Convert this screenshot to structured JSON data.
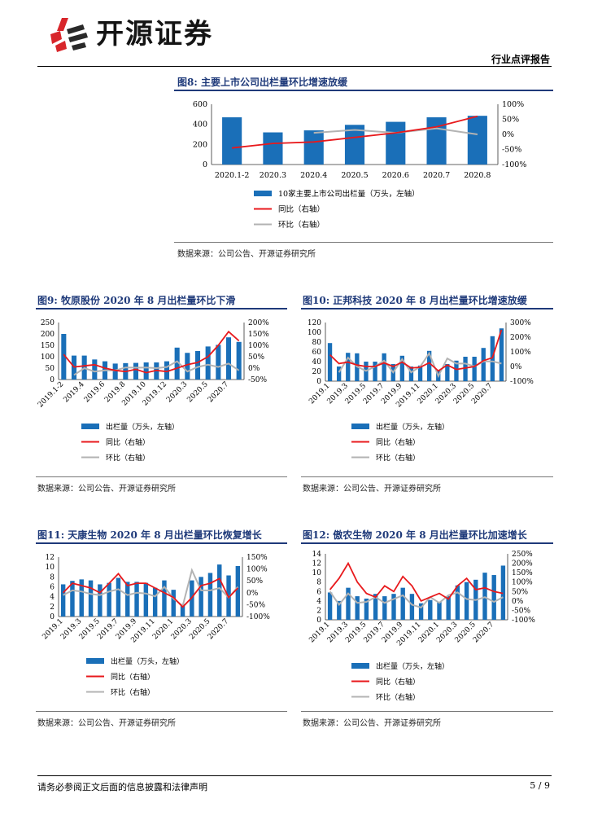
{
  "header": {
    "logo_text": "开源证券",
    "report_type": "行业点评报告"
  },
  "colors": {
    "bar": "#1a6fb8",
    "yoy": "#e8191c",
    "mom": "#b3b3b3",
    "title": "#1f3a7a"
  },
  "figures": [
    {
      "title": "图8:  主要上市公司出栏量环比增速放缓",
      "source": "数据来源：公司公告、开源证券研究所",
      "chart_data": {
        "type": "bar",
        "categories": [
          "2020.1-2",
          "2020.3",
          "2020.4",
          "2020.5",
          "2020.6",
          "2020.7",
          "2020.8"
        ],
        "values": [
          470,
          320,
          340,
          395,
          425,
          470,
          485
        ],
        "yoy": [
          -45,
          -30,
          -25,
          -10,
          5,
          25,
          60
        ],
        "mom": [
          null,
          null,
          5,
          15,
          5,
          20,
          0
        ],
        "ylim": [
          0,
          600
        ],
        "y2lim": [
          -100,
          100
        ],
        "yticks": [
          "600",
          "400",
          "200",
          "0"
        ],
        "y2ticks": [
          "100%",
          "50%",
          "0%",
          "-50%",
          "-100%"
        ],
        "legend": [
          "10家主要上市公司出栏量（万头，左轴）",
          "同比（右轴）",
          "环比（右轴）"
        ],
        "xlabel_rotated": false
      }
    },
    {
      "title": "图9:  牧原股份 2020 年 8 月出栏量环比下滑",
      "source": "数据来源：公司公告、开源证券研究所",
      "chart_data": {
        "type": "bar",
        "categories": [
          "2019.1-2",
          "2019.3",
          "2019.4",
          "2019.5",
          "2019.6",
          "2019.7",
          "2019.8",
          "2019.9",
          "2019.10",
          "2019.11",
          "2019.12",
          "2020.1-2",
          "2020.3",
          "2020.4",
          "2020.5",
          "2020.6",
          "2020.7",
          "2020.8"
        ],
        "xticks": [
          "2019.1-2",
          "2019.4",
          "2019.6",
          "2019.8",
          "2019.10",
          "2019.12",
          "2020.3",
          "2020.5",
          "2020.7"
        ],
        "values": [
          200,
          105,
          105,
          88,
          80,
          70,
          72,
          73,
          75,
          75,
          80,
          140,
          117,
          125,
          145,
          152,
          185,
          165
        ],
        "yoy": [
          60,
          5,
          10,
          15,
          0,
          -10,
          -15,
          -5,
          -20,
          -10,
          -15,
          0,
          15,
          25,
          50,
          100,
          160,
          120
        ],
        "mom": [
          null,
          -30,
          0,
          -15,
          -10,
          -10,
          3,
          2,
          3,
          0,
          5,
          30,
          -15,
          5,
          15,
          5,
          20,
          -10
        ],
        "ylim": [
          0,
          250
        ],
        "y2lim": [
          -50,
          200
        ],
        "yticks": [
          "250",
          "200",
          "150",
          "100",
          "50",
          "0"
        ],
        "y2ticks": [
          "200%",
          "150%",
          "100%",
          "50%",
          "0%",
          "-50%"
        ],
        "legend": [
          "出栏量（万头，左轴）",
          "同比（右轴）",
          "环比（右轴）"
        ],
        "xlabel_rotated": true
      }
    },
    {
      "title": "图10:  正邦科技 2020 年 8 月出栏量环比增速放缓",
      "source": "数据来源：公司公告、开源证券研究所",
      "chart_data": {
        "type": "bar",
        "categories": [
          "2019.1",
          "2019.2",
          "2019.3",
          "2019.4",
          "2019.5",
          "2019.6",
          "2019.7",
          "2019.8",
          "2019.9",
          "2019.10",
          "2019.11",
          "2019.12",
          "2020.1",
          "2020.2",
          "2020.3",
          "2020.4",
          "2020.5",
          "2020.6",
          "2020.7",
          "2020.8"
        ],
        "xticks": [
          "2019.1",
          "2019.3",
          "2019.5",
          "2019.7",
          "2019.9",
          "2019.11",
          "2020.1",
          "2020.3",
          "2020.5",
          "2020.7"
        ],
        "values": [
          78,
          30,
          58,
          57,
          40,
          40,
          57,
          35,
          52,
          30,
          32,
          62,
          22,
          35,
          42,
          50,
          50,
          68,
          92,
          108
        ],
        "yoy": [
          80,
          20,
          30,
          10,
          0,
          0,
          25,
          0,
          30,
          -10,
          -5,
          25,
          -30,
          10,
          -20,
          -10,
          0,
          40,
          60,
          250
        ],
        "mom": [
          null,
          -40,
          60,
          0,
          -30,
          0,
          40,
          -40,
          50,
          -40,
          0,
          90,
          -65,
          55,
          20,
          20,
          0,
          35,
          35,
          20
        ],
        "ylim": [
          0,
          120
        ],
        "y2lim": [
          -100,
          300
        ],
        "yticks": [
          "120",
          "100",
          "80",
          "60",
          "40",
          "20",
          "0"
        ],
        "y2ticks": [
          "300%",
          "200%",
          "100%",
          "0%",
          "-100%"
        ],
        "legend": [
          "出栏量（万头，左轴）",
          "同比（右轴）",
          "环比（右轴）"
        ],
        "xlabel_rotated": true
      }
    },
    {
      "title": "图11:  天康生物 2020 年 8 月出栏量环比恢复增长",
      "source": "数据来源：公司公告、开源证券研究所",
      "chart_data": {
        "type": "bar",
        "categories": [
          "2019.1",
          "2019.2",
          "2019.3",
          "2019.4",
          "2019.5",
          "2019.6",
          "2019.7",
          "2019.8",
          "2019.9",
          "2019.10",
          "2019.11",
          "2019.12",
          "2020.1",
          "2020.2",
          "2020.3",
          "2020.4",
          "2020.5",
          "2020.6",
          "2020.7",
          "2020.8"
        ],
        "xticks": [
          "2019.1",
          "2019.3",
          "2019.5",
          "2019.7",
          "2019.9",
          "2019.11",
          "2020.1",
          "2020.3",
          "2020.5",
          "2020.7"
        ],
        "values": [
          6.5,
          7.2,
          7.5,
          7.3,
          6.5,
          6.8,
          7.8,
          7.0,
          7.0,
          6.8,
          5.8,
          7.3,
          5.4,
          2.5,
          7.3,
          8.0,
          8.8,
          10.5,
          8.3,
          10.2
        ],
        "yoy": [
          0,
          40,
          30,
          20,
          0,
          40,
          80,
          30,
          40,
          40,
          20,
          0,
          -20,
          -60,
          -20,
          30,
          40,
          60,
          -20,
          20
        ],
        "mom": [
          -10,
          10,
          5,
          -5,
          -10,
          5,
          15,
          -10,
          0,
          -3,
          -15,
          25,
          -25,
          -55,
          95,
          10,
          10,
          20,
          -20,
          25
        ],
        "ylim": [
          0,
          12
        ],
        "y2lim": [
          -100,
          150
        ],
        "yticks": [
          "12",
          "10",
          "8",
          "6",
          "4",
          "2",
          "0"
        ],
        "y2ticks": [
          "150%",
          "100%",
          "50%",
          "0%",
          "-50%",
          "-100%"
        ],
        "legend": [
          "出栏量（万头，左轴）",
          "同比（右轴）",
          "环比（右轴）"
        ],
        "xlabel_rotated": true
      }
    },
    {
      "title": "图12:  傲农生物 2020 年 8 月出栏量环比加速增长",
      "source": "数据来源：公司公告、开源证券研究所",
      "chart_data": {
        "type": "bar",
        "categories": [
          "2019.1",
          "2019.2",
          "2019.3",
          "2019.4",
          "2019.5",
          "2019.6",
          "2019.7",
          "2019.8",
          "2019.9",
          "2019.10",
          "2019.11",
          "2019.12",
          "2020.1",
          "2020.2",
          "2020.3",
          "2020.4",
          "2020.5",
          "2020.6",
          "2020.7",
          "2020.8"
        ],
        "xticks": [
          "2019.1",
          "2019.3",
          "2019.5",
          "2019.7",
          "2019.9",
          "2019.11",
          "2020.1",
          "2020.3",
          "2020.5",
          "2020.7"
        ],
        "values": [
          5.8,
          4.0,
          6.8,
          5.0,
          4.5,
          5.5,
          5.0,
          5.5,
          6.8,
          5.5,
          3.5,
          4.2,
          3.8,
          5.0,
          7.3,
          8.0,
          8.5,
          10.0,
          9.5,
          11.5
        ],
        "yoy": [
          60,
          120,
          200,
          100,
          40,
          20,
          80,
          50,
          130,
          80,
          0,
          20,
          40,
          10,
          80,
          120,
          60,
          70,
          50,
          40
        ],
        "mom": [
          50,
          -20,
          40,
          -10,
          -5,
          20,
          -10,
          10,
          30,
          -20,
          -35,
          20,
          -10,
          30,
          45,
          10,
          5,
          20,
          -5,
          20
        ],
        "ylim": [
          0,
          14
        ],
        "y2lim": [
          -100,
          250
        ],
        "yticks": [
          "14",
          "12",
          "10",
          "8",
          "6",
          "4",
          "2",
          "0"
        ],
        "y2ticks": [
          "250%",
          "200%",
          "150%",
          "100%",
          "50%",
          "0%",
          "-50%",
          "-100%"
        ],
        "legend": [
          "出栏量（万头，左轴）",
          "同比（右轴）",
          "环比（右轴）"
        ],
        "xlabel_rotated": true
      }
    }
  ],
  "footer": {
    "disclaimer": "请务必参阅正文后面的信息披露和法律声明",
    "page": "5 / 9"
  }
}
